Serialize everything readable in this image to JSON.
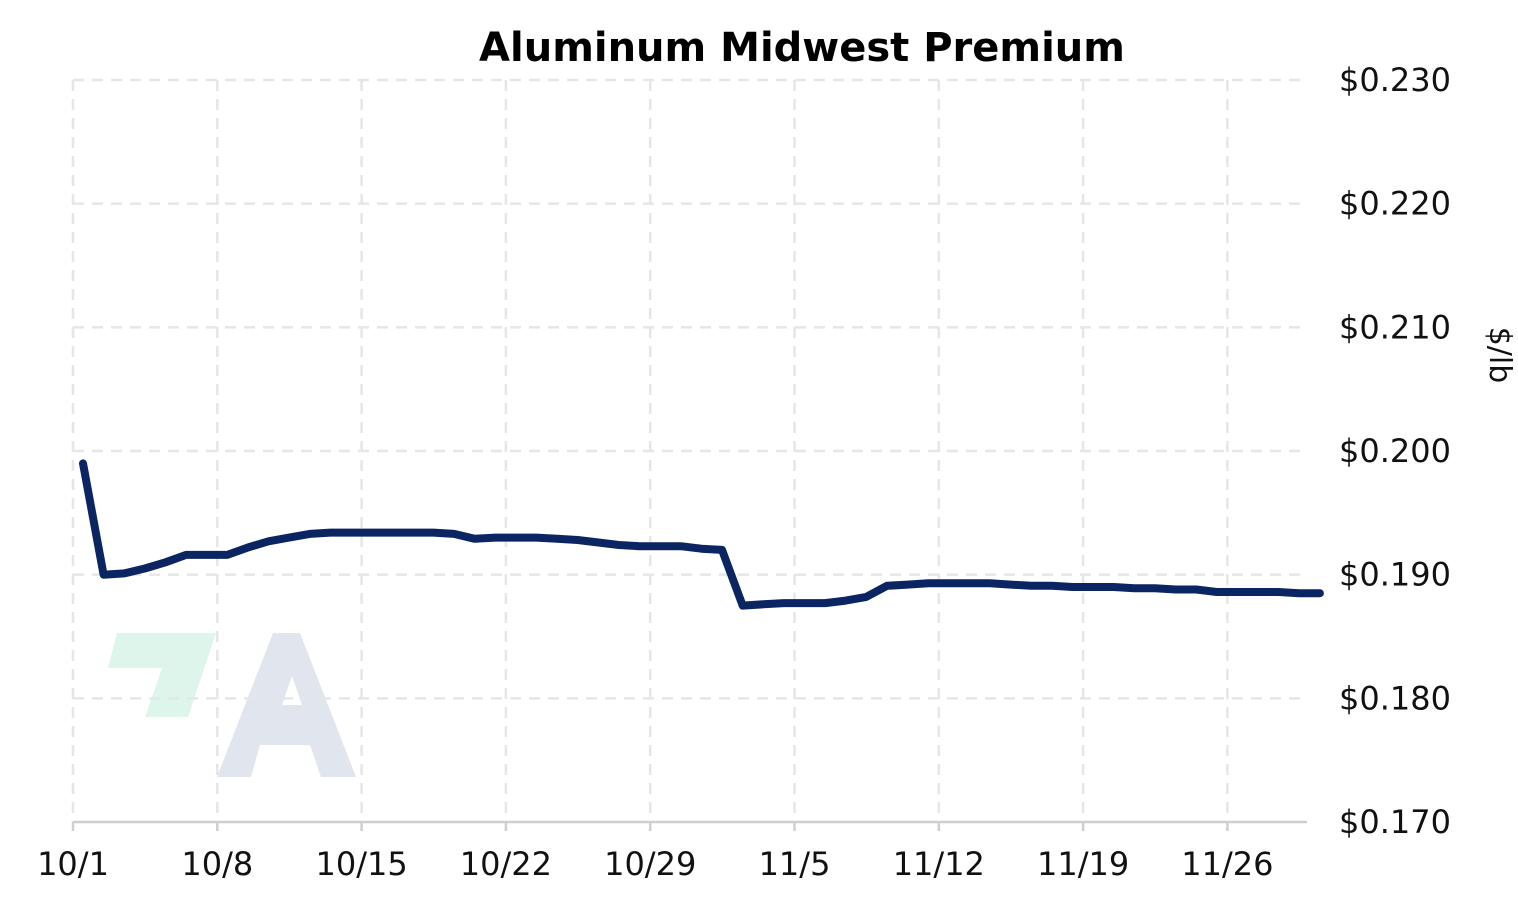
{
  "colors": {
    "line": "#0b2462",
    "logo_mark": "#def5ec",
    "logo_letter": "#e1e5ed"
  },
  "chart_data": {
    "type": "line",
    "title": "Aluminum Midwest Premium",
    "ylabel": "$/lb",
    "xlabel": "",
    "ylim": [
      0.17,
      0.23
    ],
    "y_ticks": [
      {
        "value": 0.23,
        "label": "$0.230"
      },
      {
        "value": 0.22,
        "label": "$0.220"
      },
      {
        "value": 0.21,
        "label": "$0.210"
      },
      {
        "value": 0.2,
        "label": "$0.200"
      },
      {
        "value": 0.19,
        "label": "$0.190"
      },
      {
        "value": 0.18,
        "label": "$0.180"
      },
      {
        "value": 0.17,
        "label": "$0.170"
      }
    ],
    "x_ticks": [
      "10/1",
      "10/8",
      "10/15",
      "10/22",
      "10/29",
      "11/5",
      "11/12",
      "11/19",
      "11/26"
    ],
    "grid": true,
    "legend": "none",
    "series": [
      {
        "x": [
          "10/1",
          "10/2",
          "10/3",
          "10/4",
          "10/5",
          "10/6",
          "10/7",
          "10/8",
          "10/9",
          "10/10",
          "10/11",
          "10/12",
          "10/13",
          "10/14",
          "10/15",
          "10/16",
          "10/17",
          "10/18",
          "10/19",
          "10/20",
          "10/21",
          "10/22",
          "10/23",
          "10/24",
          "10/25",
          "10/26",
          "10/27",
          "10/28",
          "10/29",
          "10/30",
          "10/31",
          "11/1",
          "11/2",
          "11/3",
          "11/4",
          "11/5",
          "11/6",
          "11/7",
          "11/8",
          "11/9",
          "11/10",
          "11/11",
          "11/12",
          "11/13",
          "11/14",
          "11/15",
          "11/16",
          "11/17",
          "11/18",
          "11/19",
          "11/20",
          "11/21",
          "11/22",
          "11/23",
          "11/24",
          "11/25",
          "11/26",
          "11/27",
          "11/28",
          "11/29",
          "11/30"
        ],
        "values": [
          0.199,
          0.19,
          0.1901,
          0.1905,
          0.191,
          0.1916,
          0.1916,
          0.1916,
          0.1922,
          0.1927,
          0.193,
          0.1933,
          0.1934,
          0.1934,
          0.1934,
          0.1934,
          0.1934,
          0.1934,
          0.1933,
          0.1929,
          0.193,
          0.193,
          0.193,
          0.1929,
          0.1928,
          0.1926,
          0.1924,
          0.1923,
          0.1923,
          0.1923,
          0.1921,
          0.192,
          0.1875,
          0.1876,
          0.1877,
          0.1877,
          0.1877,
          0.1879,
          0.1882,
          0.1891,
          0.1892,
          0.1893,
          0.1893,
          0.1893,
          0.1893,
          0.1892,
          0.1891,
          0.1891,
          0.189,
          0.189,
          0.189,
          0.1889,
          0.1889,
          0.1888,
          0.1888,
          0.1886,
          0.1886,
          0.1886,
          0.1886,
          0.1885,
          0.1885
        ]
      }
    ]
  }
}
